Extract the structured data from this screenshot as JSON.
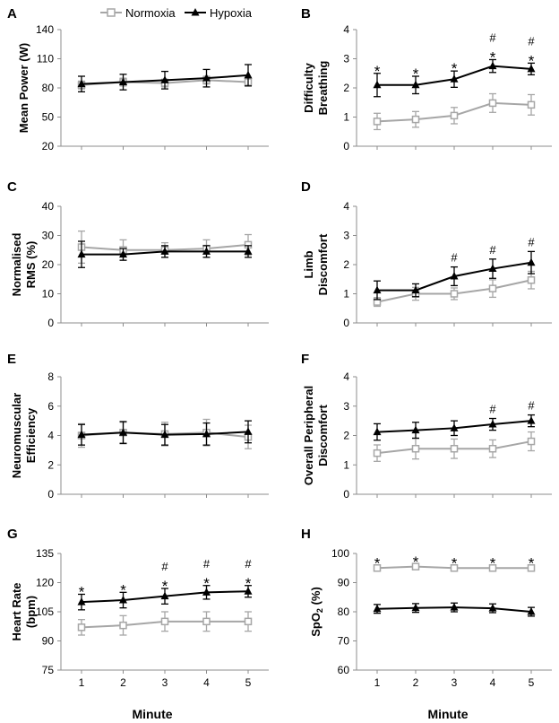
{
  "legend": {
    "normoxia": "Normoxia",
    "hypoxia": "Hypoxia"
  },
  "xlabel": "Minute",
  "colors": {
    "normoxia": "#a6a6a6",
    "hypoxia": "#000000",
    "axis": "#8c8c8c"
  },
  "chart_data": [
    {
      "type": "line",
      "letter": "A",
      "ylabel": [
        "Mean Power (W)"
      ],
      "ylim": [
        20,
        140
      ],
      "yticks": [
        20,
        50,
        80,
        110,
        140
      ],
      "x": [
        1,
        2,
        3,
        4,
        5
      ],
      "series": [
        {
          "name": "Normoxia",
          "values": [
            83,
            86,
            85,
            88,
            86
          ],
          "errors": [
            4,
            4,
            4,
            4,
            4
          ]
        },
        {
          "name": "Hypoxia",
          "values": [
            84,
            86,
            88,
            90,
            93
          ],
          "errors": [
            8,
            8,
            9,
            9,
            11
          ]
        }
      ],
      "annotations": []
    },
    {
      "type": "line",
      "letter": "B",
      "ylabel": [
        "Difficulty",
        "Breathing"
      ],
      "ylim": [
        0,
        4
      ],
      "yticks": [
        0,
        1,
        2,
        3,
        4
      ],
      "x": [
        1,
        2,
        3,
        4,
        5
      ],
      "series": [
        {
          "name": "Normoxia",
          "values": [
            0.85,
            0.92,
            1.05,
            1.48,
            1.42
          ],
          "errors": [
            0.28,
            0.27,
            0.28,
            0.32,
            0.35
          ]
        },
        {
          "name": "Hypoxia",
          "values": [
            2.1,
            2.1,
            2.3,
            2.75,
            2.65
          ],
          "errors": [
            0.4,
            0.3,
            0.28,
            0.22,
            0.2
          ]
        }
      ],
      "annotations": [
        {
          "x": 1,
          "text": [
            "*"
          ]
        },
        {
          "x": 2,
          "text": [
            "*"
          ]
        },
        {
          "x": 3,
          "text": [
            "*"
          ]
        },
        {
          "x": 4,
          "text": [
            "#",
            "*"
          ]
        },
        {
          "x": 5,
          "text": [
            "#",
            "*"
          ]
        }
      ]
    },
    {
      "type": "line",
      "letter": "C",
      "ylabel": [
        "Normalised",
        "RMS (%)"
      ],
      "ylim": [
        0,
        40
      ],
      "yticks": [
        0,
        10,
        20,
        30,
        40
      ],
      "x": [
        1,
        2,
        3,
        4,
        5
      ],
      "series": [
        {
          "name": "Normoxia",
          "values": [
            26,
            25,
            25,
            25.5,
            26.8
          ],
          "errors": [
            5.5,
            3.5,
            2.5,
            3,
            3.5
          ]
        },
        {
          "name": "Hypoxia",
          "values": [
            23.5,
            23.5,
            24.5,
            24.5,
            24.5
          ],
          "errors": [
            4.5,
            2,
            2,
            2,
            2
          ]
        }
      ],
      "annotations": []
    },
    {
      "type": "line",
      "letter": "D",
      "ylabel": [
        "Limb",
        "Discomfort"
      ],
      "ylim": [
        0,
        4
      ],
      "yticks": [
        0,
        1,
        2,
        3,
        4
      ],
      "x": [
        1,
        2,
        3,
        4,
        5
      ],
      "series": [
        {
          "name": "Normoxia",
          "values": [
            0.72,
            1.0,
            1.0,
            1.18,
            1.47
          ],
          "errors": [
            0.15,
            0.22,
            0.2,
            0.3,
            0.3
          ]
        },
        {
          "name": "Hypoxia",
          "values": [
            1.12,
            1.12,
            1.6,
            1.86,
            2.07
          ],
          "errors": [
            0.32,
            0.22,
            0.32,
            0.33,
            0.38
          ]
        }
      ],
      "annotations": [
        {
          "x": 3,
          "text": [
            "#"
          ]
        },
        {
          "x": 4,
          "text": [
            "#"
          ]
        },
        {
          "x": 5,
          "text": [
            "#"
          ]
        }
      ]
    },
    {
      "type": "line",
      "letter": "E",
      "ylabel": [
        "Neuromuscular",
        "Efficiency"
      ],
      "ylim": [
        0,
        8
      ],
      "yticks": [
        0,
        2,
        4,
        6,
        8
      ],
      "x": [
        1,
        2,
        3,
        4,
        5
      ],
      "series": [
        {
          "name": "Normoxia",
          "values": [
            4.0,
            4.2,
            4.1,
            4.2,
            3.9
          ],
          "errors": [
            0.8,
            0.7,
            0.8,
            0.9,
            0.8
          ]
        },
        {
          "name": "Hypoxia",
          "values": [
            4.05,
            4.2,
            4.05,
            4.1,
            4.25
          ],
          "errors": [
            0.7,
            0.75,
            0.7,
            0.75,
            0.75
          ]
        }
      ],
      "annotations": []
    },
    {
      "type": "line",
      "letter": "F",
      "ylabel": [
        "Overall Peripheral",
        "Discomfort"
      ],
      "ylim": [
        0,
        4
      ],
      "yticks": [
        0,
        1,
        2,
        3,
        4
      ],
      "x": [
        1,
        2,
        3,
        4,
        5
      ],
      "series": [
        {
          "name": "Normoxia",
          "values": [
            1.4,
            1.55,
            1.55,
            1.55,
            1.8
          ],
          "errors": [
            0.28,
            0.35,
            0.33,
            0.3,
            0.32
          ]
        },
        {
          "name": "Hypoxia",
          "values": [
            2.12,
            2.18,
            2.25,
            2.38,
            2.5
          ],
          "errors": [
            0.28,
            0.27,
            0.25,
            0.2,
            0.2
          ]
        }
      ],
      "annotations": [
        {
          "x": 4,
          "text": [
            "#"
          ]
        },
        {
          "x": 5,
          "text": [
            "#"
          ]
        }
      ]
    },
    {
      "type": "line",
      "letter": "G",
      "ylabel": [
        "Heart Rate",
        "(bpm)"
      ],
      "ylim": [
        75,
        135
      ],
      "yticks": [
        75,
        90,
        105,
        120,
        135
      ],
      "x": [
        1,
        2,
        3,
        4,
        5
      ],
      "series": [
        {
          "name": "Normoxia",
          "values": [
            97,
            98,
            100,
            100,
            100
          ],
          "errors": [
            4,
            5,
            5,
            5,
            5
          ]
        },
        {
          "name": "Hypoxia",
          "values": [
            110,
            111,
            113,
            115,
            115.5
          ],
          "errors": [
            4,
            4,
            4,
            3.5,
            3
          ]
        }
      ],
      "annotations": [
        {
          "x": 1,
          "text": [
            "*"
          ]
        },
        {
          "x": 2,
          "text": [
            "*"
          ]
        },
        {
          "x": 3,
          "text": [
            "#",
            "*"
          ]
        },
        {
          "x": 4,
          "text": [
            "#",
            "*"
          ]
        },
        {
          "x": 5,
          "text": [
            "#",
            "*"
          ]
        }
      ]
    },
    {
      "type": "line",
      "letter": "H",
      "ylabel": [
        "SpO₂ (%)"
      ],
      "ylim": [
        60,
        100
      ],
      "yticks": [
        60,
        70,
        80,
        90,
        100
      ],
      "x": [
        1,
        2,
        3,
        4,
        5
      ],
      "series": [
        {
          "name": "Normoxia",
          "values": [
            95,
            95.5,
            95,
            95,
            95
          ],
          "errors": [
            0.8,
            0.8,
            0.8,
            0.8,
            0.8
          ]
        },
        {
          "name": "Hypoxia",
          "values": [
            81,
            81.3,
            81.5,
            81.2,
            80
          ],
          "errors": [
            1.5,
            1.5,
            1.5,
            1.5,
            1.5
          ]
        }
      ],
      "annotations": [
        {
          "x": 1,
          "text": [
            "*"
          ]
        },
        {
          "x": 2,
          "text": [
            "*"
          ]
        },
        {
          "x": 3,
          "text": [
            "*"
          ]
        },
        {
          "x": 4,
          "text": [
            "*"
          ]
        },
        {
          "x": 5,
          "text": [
            "*"
          ]
        }
      ]
    }
  ]
}
